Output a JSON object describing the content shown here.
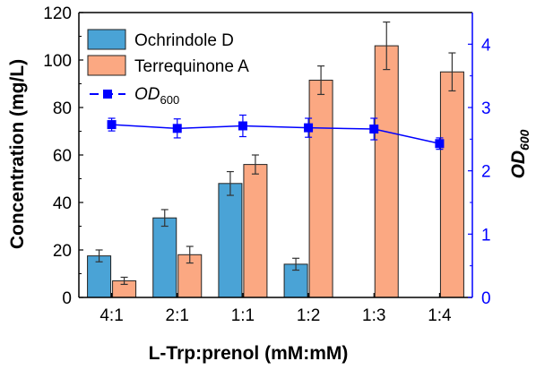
{
  "chart_data": {
    "type": "bar",
    "categories": [
      "4:1",
      "2:1",
      "1:1",
      "1:2",
      "1:3",
      "1:4"
    ],
    "xlabel": "L-Trp:prenol (mM:mM)",
    "ylabel": "Concentration (mg/L)",
    "ylim": [
      0,
      120
    ],
    "yticks": [
      "0",
      "20",
      "40",
      "60",
      "80",
      "100",
      "120"
    ],
    "y2label_main": "OD",
    "y2label_sub": "600",
    "y2lim": [
      0,
      4.5
    ],
    "y2ticks": [
      "0",
      "1",
      "2",
      "3",
      "4"
    ],
    "legend_position": "top-left",
    "grid": false,
    "series": [
      {
        "name": "Ochrindole D",
        "kind": "bar",
        "axis": "left",
        "color": "#4aa3d6",
        "values": [
          17.5,
          33.5,
          48,
          14,
          null,
          null
        ],
        "errors": [
          2.5,
          3.5,
          5,
          2.5,
          null,
          null
        ]
      },
      {
        "name": "Terrequinone A",
        "kind": "bar",
        "axis": "left",
        "color": "#fba882",
        "values": [
          7,
          18,
          56,
          91.5,
          106,
          95
        ],
        "errors": [
          1.5,
          3.5,
          4,
          6,
          10,
          8
        ]
      },
      {
        "name_main": "OD",
        "name_sub": "600",
        "kind": "line",
        "axis": "right",
        "color": "#0000ff",
        "values": [
          2.73,
          2.67,
          2.71,
          2.68,
          2.66,
          2.43
        ],
        "errors": [
          0.1,
          0.15,
          0.17,
          0.15,
          0.17,
          0.09
        ]
      }
    ]
  }
}
